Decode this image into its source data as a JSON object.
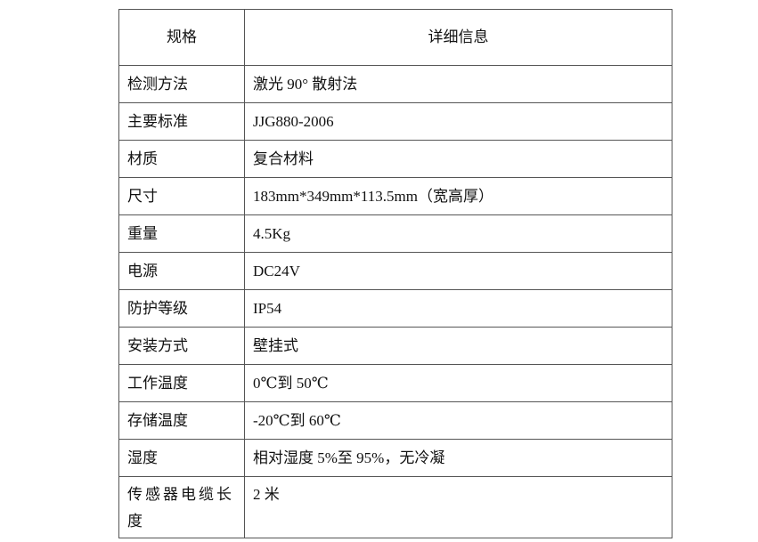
{
  "table": {
    "headers": [
      "规格",
      "详细信息"
    ],
    "rows": [
      [
        "检测方法",
        "激光 90° 散射法"
      ],
      [
        "主要标准",
        "JJG880-2006"
      ],
      [
        "材质",
        "复合材料"
      ],
      [
        "尺寸",
        "183mm*349mm*113.5mm（宽高厚）"
      ],
      [
        "重量",
        "4.5Kg"
      ],
      [
        "电源",
        "DC24V"
      ],
      [
        "防护等级",
        "IP54"
      ],
      [
        "安装方式",
        "壁挂式"
      ],
      [
        "工作温度",
        "0℃到 50℃"
      ],
      [
        "存储温度",
        "-20℃到 60℃"
      ],
      [
        "湿度",
        "相对湿度 5%至 95%，无冷凝"
      ],
      [
        "传感器电缆长度",
        "2 米"
      ]
    ]
  }
}
